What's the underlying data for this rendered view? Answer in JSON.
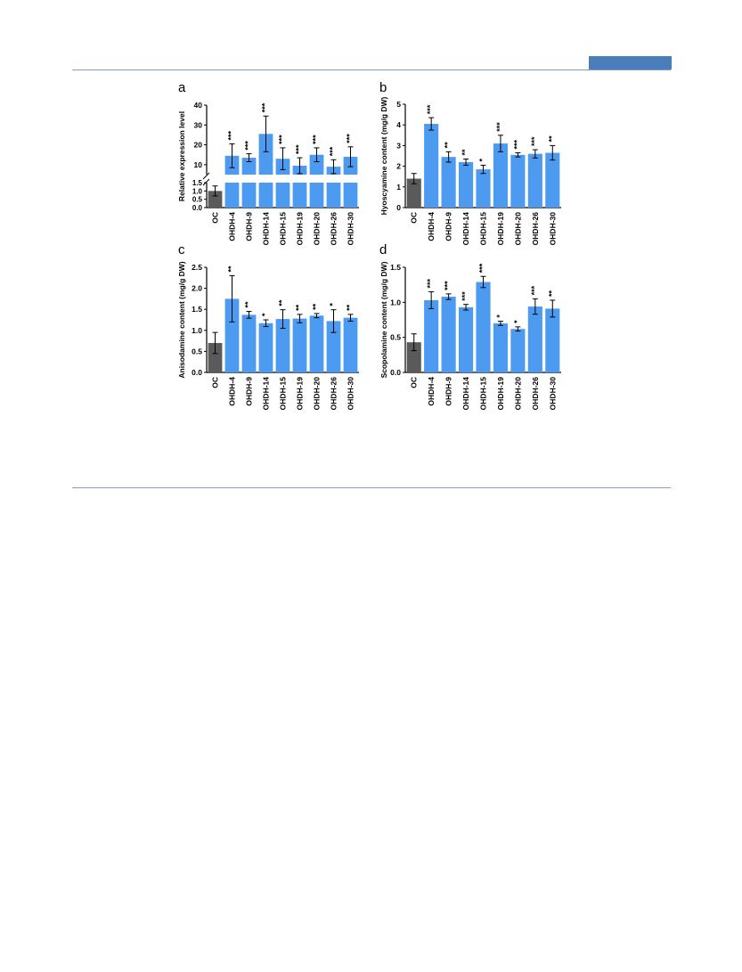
{
  "page": {
    "badge_color": "#4a7ebb",
    "rule_color": "#7f9fc4"
  },
  "colors": {
    "control_bar": "#5a5a5a",
    "treatment_bar": "#4d9bf0",
    "axis": "#000000"
  },
  "chart_data": [
    {
      "panel": "a",
      "type": "bar",
      "ylabel": "Relative expression level",
      "broken_axis": true,
      "lower_segment": {
        "ylim": [
          0,
          1.5
        ],
        "ticks": [
          "0.0",
          "0.5",
          "1.0",
          "1.5"
        ]
      },
      "upper_segment": {
        "ylim": [
          5,
          40
        ],
        "ticks": [
          "10",
          "20",
          "30",
          "40"
        ]
      },
      "categories": [
        "OC",
        "OHDH-4",
        "OHDH-9",
        "OHDH-14",
        "OHDH-15",
        "OHDH-19",
        "OHDH-20",
        "OHDH-26",
        "OHDH-30"
      ],
      "values": [
        1.0,
        14.5,
        13.5,
        25.5,
        13.0,
        9.5,
        15.0,
        9.0,
        14.0
      ],
      "errors": [
        0.3,
        6.0,
        2.0,
        9.0,
        5.5,
        4.0,
        3.5,
        3.5,
        5.0
      ],
      "significance": [
        "",
        "***",
        "***",
        "***",
        "***",
        "***",
        "***",
        "***",
        "***"
      ],
      "grid": false,
      "legend": "none"
    },
    {
      "panel": "b",
      "type": "bar",
      "ylabel": "Hyoscyamine content (mg/g DW)",
      "ylim": [
        0,
        5
      ],
      "ticks": [
        "0",
        "1",
        "2",
        "3",
        "4",
        "5"
      ],
      "categories": [
        "OC",
        "OHDH-4",
        "OHDH-9",
        "OHDH-14",
        "OHDH-15",
        "OHDH-19",
        "OHDH-20",
        "OHDH-26",
        "OHDH-30"
      ],
      "values": [
        1.4,
        4.05,
        2.45,
        2.2,
        1.85,
        3.1,
        2.55,
        2.6,
        2.65
      ],
      "errors": [
        0.25,
        0.3,
        0.25,
        0.15,
        0.2,
        0.4,
        0.1,
        0.2,
        0.35
      ],
      "significance": [
        "",
        "***",
        "**",
        "**",
        "*",
        "***",
        "***",
        "***",
        "**"
      ],
      "grid": false,
      "legend": "none"
    },
    {
      "panel": "c",
      "type": "bar",
      "ylabel": "Anisodamine content (mg/g DW)",
      "ylim": [
        0,
        2.5
      ],
      "ticks": [
        "0.0",
        "0.5",
        "1.0",
        "1.5",
        "2.0",
        "2.5"
      ],
      "categories": [
        "OC",
        "OHDH-4",
        "OHDH-9",
        "OHDH-14",
        "OHDH-15",
        "OHDH-19",
        "OHDH-20",
        "OHDH-26",
        "OHDH-30"
      ],
      "values": [
        0.7,
        1.75,
        1.37,
        1.17,
        1.27,
        1.28,
        1.35,
        1.22,
        1.3
      ],
      "errors": [
        0.25,
        0.55,
        0.08,
        0.08,
        0.22,
        0.1,
        0.05,
        0.27,
        0.08
      ],
      "significance": [
        "",
        "**",
        "**",
        "*",
        "**",
        "**",
        "**",
        "*",
        "**"
      ],
      "grid": false,
      "legend": "none"
    },
    {
      "panel": "d",
      "type": "bar",
      "ylabel": "Scopolamine content (mg/g DW)",
      "ylim": [
        0,
        1.5
      ],
      "ticks": [
        "0.0",
        "0.5",
        "1.0",
        "1.5"
      ],
      "categories": [
        "OC",
        "OHDH-4",
        "OHDH-9",
        "OHDH-14",
        "OHDH-15",
        "OHDH-19",
        "OHDH-20",
        "OHDH-26",
        "OHDH-30"
      ],
      "values": [
        0.43,
        1.03,
        1.08,
        0.93,
        1.29,
        0.7,
        0.62,
        0.94,
        0.91
      ],
      "errors": [
        0.12,
        0.12,
        0.04,
        0.04,
        0.08,
        0.03,
        0.03,
        0.11,
        0.12
      ],
      "significance": [
        "",
        "***",
        "***",
        "***",
        "***",
        "*",
        "*",
        "***",
        "**"
      ],
      "grid": false,
      "legend": "none"
    }
  ]
}
